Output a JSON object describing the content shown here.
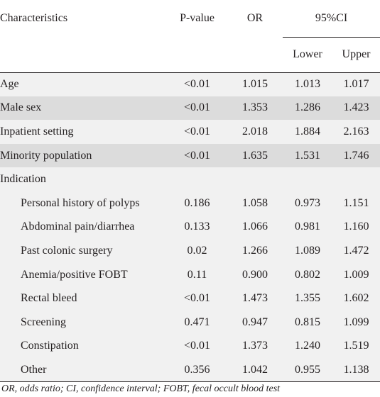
{
  "header": {
    "characteristics": "Characteristics",
    "pvalue": "P-value",
    "or": "OR",
    "ci": "95%CI",
    "lower": "Lower",
    "upper": "Upper"
  },
  "rows": [
    {
      "name": "Age",
      "p": "<0.01",
      "or": "1.015",
      "lower": "1.013",
      "upper": "1.017",
      "shade": "light",
      "indent": false
    },
    {
      "name": "Male sex",
      "p": "<0.01",
      "or": "1.353",
      "lower": "1.286",
      "upper": "1.423",
      "shade": "dark",
      "indent": false
    },
    {
      "name": "Inpatient setting",
      "p": "<0.01",
      "or": "2.018",
      "lower": "1.884",
      "upper": "2.163",
      "shade": "light",
      "indent": false
    },
    {
      "name": "Minority population",
      "p": "<0.01",
      "or": "1.635",
      "lower": "1.531",
      "upper": "1.746",
      "shade": "dark",
      "indent": false
    },
    {
      "name": "Indication",
      "p": "",
      "or": "",
      "lower": "",
      "upper": "",
      "shade": "light",
      "indent": false
    },
    {
      "name": "Personal history of polyps",
      "p": "0.186",
      "or": "1.058",
      "lower": "0.973",
      "upper": "1.151",
      "shade": "light",
      "indent": true
    },
    {
      "name": "Abdominal pain/diarrhea",
      "p": "0.133",
      "or": "1.066",
      "lower": "0.981",
      "upper": "1.160",
      "shade": "light",
      "indent": true
    },
    {
      "name": "Past colonic surgery",
      "p": "0.02",
      "or": "1.266",
      "lower": "1.089",
      "upper": "1.472",
      "shade": "light",
      "indent": true
    },
    {
      "name": "Anemia/positive FOBT",
      "p": "0.11",
      "or": "0.900",
      "lower": "0.802",
      "upper": "1.009",
      "shade": "light",
      "indent": true
    },
    {
      "name": "Rectal bleed",
      "p": "<0.01",
      "or": "1.473",
      "lower": "1.355",
      "upper": "1.602",
      "shade": "light",
      "indent": true
    },
    {
      "name": "Screening",
      "p": "0.471",
      "or": "0.947",
      "lower": "0.815",
      "upper": "1.099",
      "shade": "light",
      "indent": true
    },
    {
      "name": "Constipation",
      "p": "<0.01",
      "or": "1.373",
      "lower": "1.240",
      "upper": "1.519",
      "shade": "light",
      "indent": true
    },
    {
      "name": "Other",
      "p": "0.356",
      "or": "1.042",
      "lower": "0.955",
      "upper": "1.138",
      "shade": "light",
      "indent": true
    }
  ],
  "footnote": "OR, odds ratio; CI, confidence interval; FOBT, fecal occult blood test"
}
